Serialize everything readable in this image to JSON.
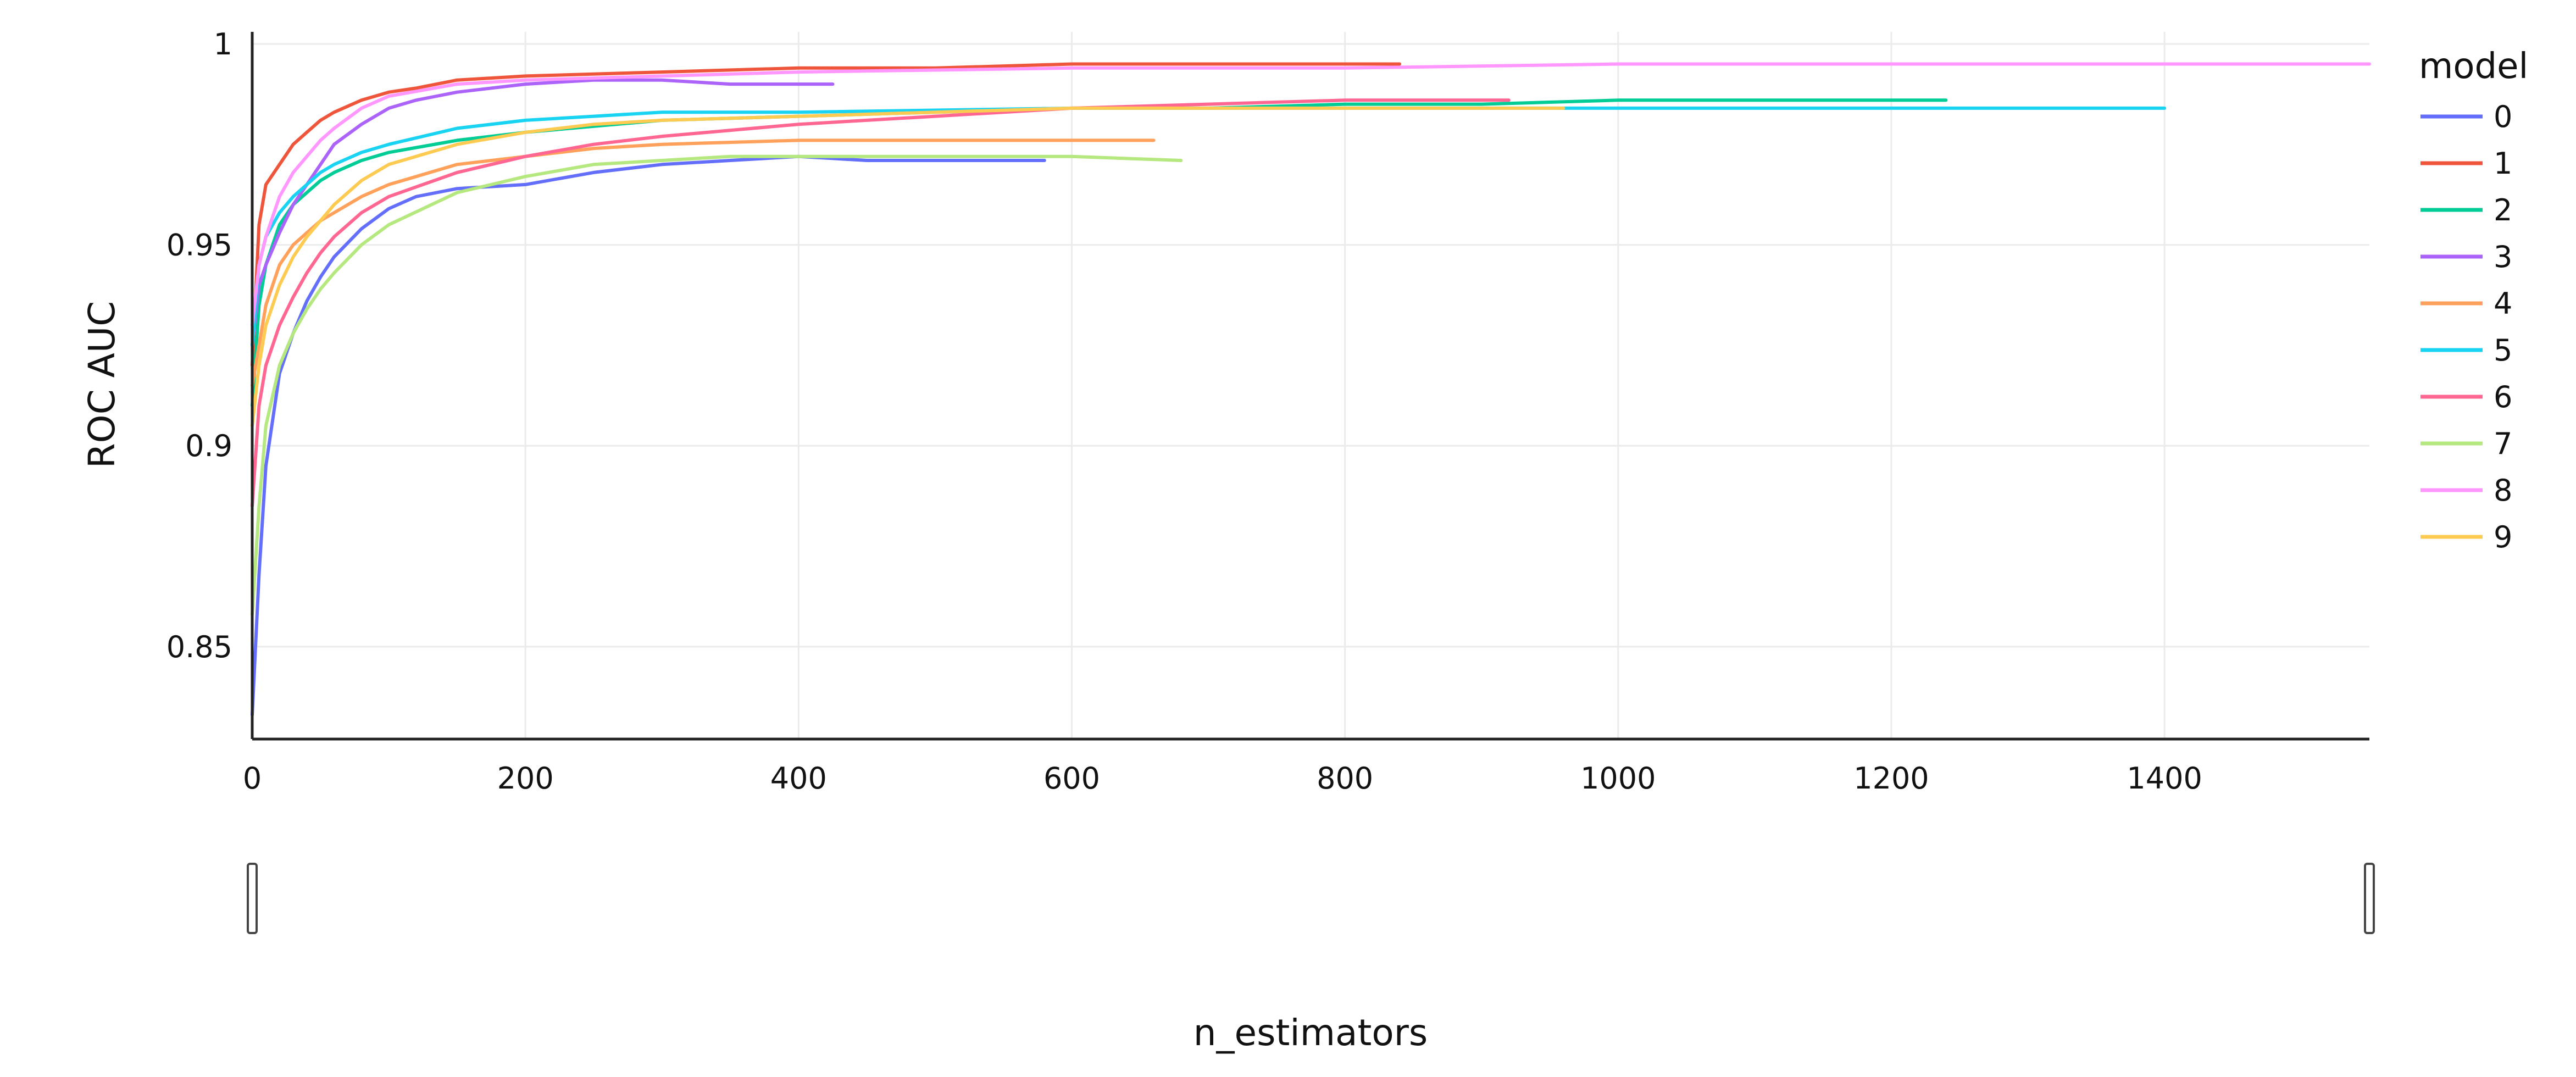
{
  "chart_data": {
    "type": "line",
    "xlabel": "n_estimators",
    "ylabel": "ROC AUC",
    "xlim": [
      0,
      1550
    ],
    "ylim": [
      0.827,
      1.003
    ],
    "x_ticks": [
      0,
      200,
      400,
      600,
      800,
      1000,
      1200,
      1400
    ],
    "y_ticks": [
      0.85,
      0.9,
      0.95,
      1
    ],
    "x_tick_labels": [
      "0",
      "200",
      "400",
      "600",
      "800",
      "1000",
      "1200",
      "1400"
    ],
    "y_tick_labels": [
      "0.85",
      "0.9",
      "0.95",
      "1"
    ],
    "grid": true,
    "legend_title": "model",
    "legend_position": "right",
    "range_slider": true,
    "series": [
      {
        "name": "0",
        "color": "#636efa",
        "x": [
          0,
          5,
          10,
          20,
          30,
          40,
          50,
          60,
          80,
          100,
          120,
          150,
          200,
          250,
          300,
          350,
          400,
          450,
          500,
          580
        ],
        "y": [
          0.833,
          0.868,
          0.895,
          0.918,
          0.928,
          0.936,
          0.942,
          0.947,
          0.954,
          0.959,
          0.962,
          0.964,
          0.965,
          0.968,
          0.97,
          0.971,
          0.972,
          0.971,
          0.971,
          0.971
        ]
      },
      {
        "name": "1",
        "color": "#EF553B",
        "x": [
          0,
          5,
          10,
          20,
          30,
          40,
          50,
          60,
          80,
          100,
          120,
          150,
          200,
          300,
          400,
          500,
          600,
          700,
          800,
          840
        ],
        "y": [
          0.92,
          0.955,
          0.965,
          0.97,
          0.975,
          0.978,
          0.981,
          0.983,
          0.986,
          0.988,
          0.989,
          0.991,
          0.992,
          0.993,
          0.994,
          0.994,
          0.995,
          0.995,
          0.995,
          0.995
        ]
      },
      {
        "name": "2",
        "color": "#00cc96",
        "x": [
          0,
          5,
          10,
          20,
          30,
          40,
          50,
          60,
          80,
          100,
          150,
          200,
          300,
          400,
          500,
          600,
          700,
          800,
          900,
          1000,
          1100,
          1200,
          1240
        ],
        "y": [
          0.91,
          0.935,
          0.945,
          0.955,
          0.96,
          0.963,
          0.966,
          0.968,
          0.971,
          0.973,
          0.976,
          0.978,
          0.981,
          0.982,
          0.983,
          0.984,
          0.984,
          0.985,
          0.985,
          0.986,
          0.986,
          0.986,
          0.986
        ]
      },
      {
        "name": "3",
        "color": "#ab63fa",
        "x": [
          0,
          5,
          10,
          20,
          30,
          40,
          50,
          60,
          80,
          100,
          120,
          150,
          200,
          250,
          300,
          350,
          400,
          425
        ],
        "y": [
          0.925,
          0.94,
          0.945,
          0.953,
          0.96,
          0.965,
          0.97,
          0.975,
          0.98,
          0.984,
          0.986,
          0.988,
          0.99,
          0.991,
          0.991,
          0.99,
          0.99,
          0.99
        ]
      },
      {
        "name": "4",
        "color": "#FFA15A",
        "x": [
          0,
          5,
          10,
          20,
          30,
          40,
          50,
          60,
          80,
          100,
          150,
          200,
          250,
          300,
          400,
          500,
          600,
          660
        ],
        "y": [
          0.915,
          0.925,
          0.935,
          0.945,
          0.95,
          0.953,
          0.956,
          0.958,
          0.962,
          0.965,
          0.97,
          0.972,
          0.974,
          0.975,
          0.976,
          0.976,
          0.976,
          0.976
        ]
      },
      {
        "name": "5",
        "color": "#19d3f3",
        "x": [
          0,
          5,
          10,
          20,
          30,
          40,
          50,
          60,
          80,
          100,
          150,
          200,
          250,
          300,
          400,
          600,
          800,
          1000,
          1200,
          1400
        ],
        "y": [
          0.925,
          0.945,
          0.952,
          0.958,
          0.962,
          0.965,
          0.968,
          0.97,
          0.973,
          0.975,
          0.979,
          0.981,
          0.982,
          0.983,
          0.983,
          0.984,
          0.984,
          0.984,
          0.984,
          0.984
        ]
      },
      {
        "name": "6",
        "color": "#FF6692",
        "x": [
          0,
          5,
          10,
          20,
          30,
          40,
          50,
          60,
          80,
          100,
          150,
          200,
          250,
          300,
          400,
          500,
          600,
          700,
          800,
          920
        ],
        "y": [
          0.885,
          0.91,
          0.92,
          0.93,
          0.937,
          0.943,
          0.948,
          0.952,
          0.958,
          0.962,
          0.968,
          0.972,
          0.975,
          0.977,
          0.98,
          0.982,
          0.984,
          0.985,
          0.986,
          0.986
        ]
      },
      {
        "name": "7",
        "color": "#B6E880",
        "x": [
          0,
          5,
          10,
          20,
          30,
          40,
          50,
          60,
          80,
          100,
          150,
          200,
          250,
          300,
          350,
          400,
          500,
          600,
          680
        ],
        "y": [
          0.858,
          0.885,
          0.905,
          0.92,
          0.928,
          0.934,
          0.939,
          0.943,
          0.95,
          0.955,
          0.963,
          0.967,
          0.97,
          0.971,
          0.972,
          0.972,
          0.972,
          0.972,
          0.971
        ]
      },
      {
        "name": "8",
        "color": "#FF97FF",
        "x": [
          0,
          5,
          10,
          20,
          30,
          40,
          50,
          60,
          80,
          100,
          150,
          200,
          300,
          400,
          600,
          800,
          1000,
          1200,
          1400,
          1550
        ],
        "y": [
          0.93,
          0.945,
          0.952,
          0.962,
          0.968,
          0.972,
          0.976,
          0.979,
          0.984,
          0.987,
          0.99,
          0.991,
          0.992,
          0.993,
          0.994,
          0.994,
          0.995,
          0.995,
          0.995,
          0.995
        ]
      },
      {
        "name": "9",
        "color": "#FECB52",
        "x": [
          0,
          5,
          10,
          20,
          30,
          40,
          50,
          60,
          80,
          100,
          150,
          200,
          250,
          300,
          400,
          500,
          600,
          700,
          800,
          960
        ],
        "y": [
          0.905,
          0.92,
          0.93,
          0.94,
          0.947,
          0.952,
          0.956,
          0.96,
          0.966,
          0.97,
          0.975,
          0.978,
          0.98,
          0.981,
          0.982,
          0.983,
          0.984,
          0.984,
          0.984,
          0.984
        ]
      }
    ]
  }
}
